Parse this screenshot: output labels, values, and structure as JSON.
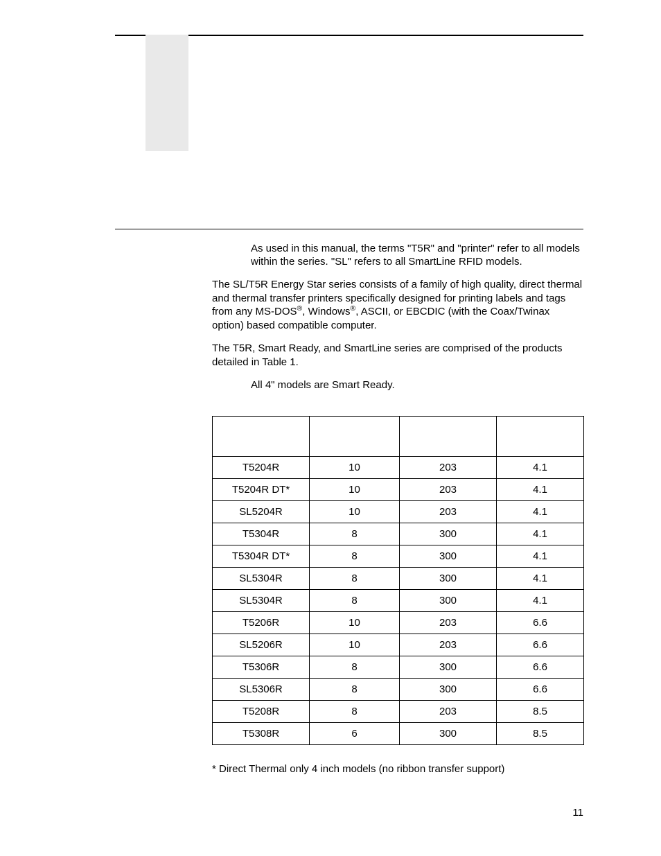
{
  "note_text": "As used in this manual, the terms \"T5R\" and \"printer\" refer to all models within the series. \"SL\" refers to all SmartLine RFID models.",
  "para1_a": "The SL/T5R Energy Star series consists of a family of high quality, direct thermal and thermal transfer printers specifically designed for printing labels and tags from any MS-DOS",
  "para1_b": ", Windows",
  "para1_c": ", ASCII, or EBCDIC (with the Coax/Twinax option) based compatible computer.",
  "para2": "The T5R, Smart Ready, and SmartLine series are comprised of the products detailed in Table 1.",
  "note2": "All 4\" models are Smart Ready.",
  "table": {
    "headers": [
      "",
      "",
      "",
      ""
    ],
    "rows": [
      [
        "T5204R",
        "10",
        "203",
        "4.1"
      ],
      [
        "T5204R DT*",
        "10",
        "203",
        "4.1"
      ],
      [
        "SL5204R",
        "10",
        "203",
        "4.1"
      ],
      [
        "T5304R",
        "8",
        "300",
        "4.1"
      ],
      [
        "T5304R DT*",
        "8",
        "300",
        "4.1"
      ],
      [
        "SL5304R",
        "8",
        "300",
        "4.1"
      ],
      [
        "SL5304R",
        "8",
        "300",
        "4.1"
      ],
      [
        "T5206R",
        "10",
        "203",
        "6.6"
      ],
      [
        "SL5206R",
        "10",
        "203",
        "6.6"
      ],
      [
        "T5306R",
        "8",
        "300",
        "6.6"
      ],
      [
        "SL5306R",
        "8",
        "300",
        "6.6"
      ],
      [
        "T5208R",
        "8",
        "203",
        "8.5"
      ],
      [
        "T5308R",
        "6",
        "300",
        "8.5"
      ]
    ]
  },
  "footnote": "* Direct Thermal only 4 inch models (no ribbon transfer support)",
  "page_number": "11",
  "reg_mark": "®"
}
